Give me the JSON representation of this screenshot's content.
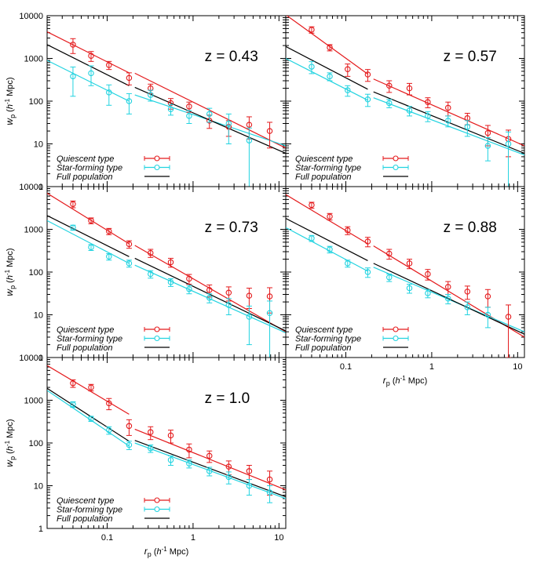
{
  "colors": {
    "quiescent": "#e41a1c",
    "starforming": "#22d3e0",
    "full": "#000000"
  },
  "legend": {
    "quiescent": "Quiescent type",
    "starforming": "Star-forming type",
    "full": "Full population"
  },
  "axes": {
    "ylabel_main": "w",
    "ylabel_sub": "p",
    "ylabel_unit_pre": " (",
    "ylabel_unit_h": "h",
    "ylabel_unit_exp": "-1",
    "ylabel_unit_post": " Mpc)",
    "xlabel_main": "r",
    "xlabel_sub": "p",
    "xlabel_unit_pre": " (",
    "xlabel_unit_h": "h",
    "xlabel_unit_exp": "-1",
    "xlabel_unit_post": " Mpc)",
    "xlim": [
      0.02,
      12
    ],
    "ylim": [
      1,
      10000
    ],
    "x_scale": "log",
    "y_scale": "log",
    "x_ticks": [
      {
        "v": 0.1,
        "label": "0.1"
      },
      {
        "v": 1,
        "label": "1"
      },
      {
        "v": 10,
        "label": "10"
      }
    ],
    "y_ticks": [
      {
        "v": 1,
        "label": "1"
      },
      {
        "v": 10,
        "label": "10"
      },
      {
        "v": 100,
        "label": "100"
      },
      {
        "v": 1000,
        "label": "1000"
      },
      {
        "v": 10000,
        "label": "10000"
      }
    ]
  },
  "chart_data": [
    {
      "type": "scatter",
      "label": "z = 0.43",
      "x": [
        0.04,
        0.065,
        0.105,
        0.18,
        0.32,
        0.55,
        0.9,
        1.55,
        2.6,
        4.5,
        7.8
      ],
      "series": [
        {
          "name": "Quiescent type",
          "y": [
            2100,
            1150,
            700,
            350,
            200,
            90,
            75,
            35,
            25,
            28,
            20
          ],
          "err_lo": [
            800,
            300,
            150,
            110,
            50,
            25,
            20,
            12,
            10,
            15,
            12
          ],
          "err_hi": [
            800,
            300,
            150,
            110,
            50,
            25,
            20,
            12,
            10,
            15,
            12
          ],
          "fit": [
            [
              0.02,
              4200
            ],
            [
              0.18,
              460
            ],
            [
              0.21,
              450
            ],
            [
              12,
              8
            ]
          ]
        },
        {
          "name": "Star-forming type",
          "y": [
            380,
            450,
            160,
            100,
            140,
            65,
            45,
            50,
            30,
            12,
            0
          ],
          "err_lo": [
            250,
            220,
            80,
            50,
            40,
            18,
            15,
            18,
            20,
            11.5,
            0
          ],
          "err_hi": [
            250,
            220,
            80,
            50,
            40,
            18,
            15,
            18,
            20,
            11.5,
            0
          ],
          "fit": [
            [
              0.02,
              900
            ],
            [
              0.18,
              100
            ],
            [
              0.21,
              140
            ],
            [
              12,
              9
            ]
          ]
        },
        {
          "name": "Full population",
          "fit": [
            [
              0.02,
              2100
            ],
            [
              0.18,
              230
            ],
            [
              0.21,
              210
            ],
            [
              12,
              6
            ]
          ]
        }
      ]
    },
    {
      "type": "scatter",
      "label": "z = 0.57",
      "x": [
        0.04,
        0.065,
        0.105,
        0.18,
        0.32,
        0.55,
        0.9,
        1.55,
        2.6,
        4.5,
        7.8
      ],
      "series": [
        {
          "name": "Quiescent type",
          "y": [
            4700,
            1800,
            560,
            420,
            230,
            200,
            95,
            70,
            40,
            18,
            13
          ],
          "err_lo": [
            800,
            300,
            180,
            130,
            70,
            60,
            25,
            25,
            12,
            9,
            8
          ],
          "err_hi": [
            800,
            300,
            180,
            130,
            70,
            60,
            25,
            25,
            12,
            9,
            8
          ],
          "fit": [
            [
              0.02,
              10500
            ],
            [
              0.18,
              430
            ],
            [
              0.21,
              330
            ],
            [
              12,
              9
            ]
          ]
        },
        {
          "name": "Star-forming type",
          "y": [
            640,
            380,
            180,
            110,
            90,
            60,
            45,
            35,
            25,
            9,
            10
          ],
          "err_lo": [
            200,
            80,
            50,
            35,
            20,
            15,
            12,
            10,
            10,
            5,
            9
          ],
          "err_hi": [
            200,
            80,
            50,
            35,
            20,
            15,
            12,
            10,
            10,
            5,
            9
          ],
          "fit": [
            [
              0.02,
              1000
            ],
            [
              0.18,
              105
            ],
            [
              0.21,
              120
            ],
            [
              12,
              5.5
            ]
          ]
        },
        {
          "name": "Full population",
          "fit": [
            [
              0.02,
              1900
            ],
            [
              0.18,
              190
            ],
            [
              0.21,
              165
            ],
            [
              12,
              6
            ]
          ]
        }
      ]
    },
    {
      "type": "scatter",
      "label": "z = 0.73",
      "x": [
        0.04,
        0.065,
        0.105,
        0.18,
        0.32,
        0.55,
        0.9,
        1.55,
        2.6,
        4.5,
        7.8
      ],
      "series": [
        {
          "name": "Quiescent type",
          "y": [
            3900,
            1600,
            900,
            450,
            280,
            170,
            70,
            38,
            33,
            28,
            27
          ],
          "err_lo": [
            700,
            250,
            150,
            90,
            60,
            40,
            18,
            12,
            12,
            14,
            16
          ],
          "err_hi": [
            700,
            250,
            150,
            90,
            60,
            40,
            18,
            12,
            12,
            14,
            16
          ],
          "fit": [
            [
              0.02,
              7000
            ],
            [
              0.18,
              460
            ],
            [
              0.21,
              420
            ],
            [
              12,
              4
            ]
          ]
        },
        {
          "name": "Star-forming type",
          "y": [
            1100,
            380,
            230,
            160,
            90,
            58,
            40,
            25,
            17,
            9,
            11
          ],
          "err_lo": [
            150,
            60,
            40,
            30,
            18,
            12,
            9,
            6,
            7,
            7,
            10
          ],
          "err_hi": [
            150,
            60,
            40,
            30,
            18,
            12,
            9,
            6,
            7,
            7,
            10
          ],
          "fit": [
            [
              0.02,
              1600
            ],
            [
              0.18,
              160
            ],
            [
              0.21,
              145
            ],
            [
              12,
              3.8
            ]
          ]
        },
        {
          "name": "Full population",
          "fit": [
            [
              0.02,
              2100
            ],
            [
              0.18,
              230
            ],
            [
              0.21,
              210
            ],
            [
              12,
              4.2
            ]
          ]
        }
      ]
    },
    {
      "type": "scatter",
      "label": "z = 0.88",
      "x": [
        0.04,
        0.065,
        0.105,
        0.18,
        0.32,
        0.55,
        0.9,
        1.55,
        2.6,
        4.5,
        7.8
      ],
      "series": [
        {
          "name": "Quiescent type",
          "y": [
            3700,
            2000,
            950,
            520,
            270,
            160,
            90,
            45,
            35,
            27,
            9
          ],
          "err_lo": [
            600,
            350,
            200,
            130,
            70,
            40,
            25,
            15,
            12,
            12,
            8
          ],
          "err_hi": [
            600,
            350,
            200,
            130,
            70,
            40,
            25,
            15,
            12,
            12,
            8
          ],
          "fit": [
            [
              0.02,
              6500
            ],
            [
              0.18,
              460
            ],
            [
              0.21,
              410
            ],
            [
              12,
              3
            ]
          ]
        },
        {
          "name": "Star-forming type",
          "y": [
            620,
            340,
            160,
            100,
            75,
            42,
            32,
            24,
            15,
            10,
            0
          ],
          "err_lo": [
            100,
            60,
            30,
            25,
            15,
            10,
            7,
            6,
            5,
            5,
            0
          ],
          "err_hi": [
            100,
            60,
            30,
            25,
            15,
            10,
            7,
            6,
            5,
            5,
            0
          ],
          "fit": [
            [
              0.02,
              1100
            ],
            [
              0.18,
              105
            ],
            [
              0.21,
              130
            ],
            [
              12,
              4
            ]
          ]
        },
        {
          "name": "Full population",
          "fit": [
            [
              0.02,
              1800
            ],
            [
              0.18,
              185
            ],
            [
              0.21,
              160
            ],
            [
              12,
              3.5
            ]
          ]
        }
      ]
    },
    {
      "type": "scatter",
      "label": "z = 1.0",
      "x": [
        0.04,
        0.065,
        0.105,
        0.18,
        0.32,
        0.55,
        0.9,
        1.55,
        2.6,
        4.5,
        7.8
      ],
      "series": [
        {
          "name": "Quiescent type",
          "y": [
            2500,
            2000,
            850,
            250,
            180,
            150,
            70,
            50,
            28,
            22,
            14
          ],
          "err_lo": [
            500,
            350,
            250,
            100,
            60,
            50,
            25,
            15,
            10,
            8,
            8
          ],
          "err_hi": [
            500,
            350,
            250,
            100,
            60,
            50,
            25,
            15,
            10,
            8,
            8
          ],
          "fit": [
            [
              0.02,
              6500
            ],
            [
              0.18,
              470
            ],
            [
              0.21,
              210
            ],
            [
              12,
              8
            ]
          ]
        },
        {
          "name": "Star-forming type",
          "y": [
            800,
            370,
            200,
            90,
            75,
            40,
            33,
            22,
            16,
            10,
            7
          ],
          "err_lo": [
            120,
            50,
            40,
            20,
            15,
            10,
            7,
            5,
            5,
            4,
            3
          ],
          "err_hi": [
            120,
            50,
            40,
            20,
            15,
            10,
            7,
            5,
            5,
            4,
            3
          ],
          "fit": [
            [
              0.02,
              1700
            ],
            [
              0.18,
              85
            ],
            [
              0.21,
              100
            ],
            [
              12,
              5
            ]
          ]
        },
        {
          "name": "Full population",
          "fit": [
            [
              0.02,
              1900
            ],
            [
              0.18,
              110
            ],
            [
              0.21,
              115
            ],
            [
              12,
              5.5
            ]
          ]
        }
      ]
    }
  ]
}
